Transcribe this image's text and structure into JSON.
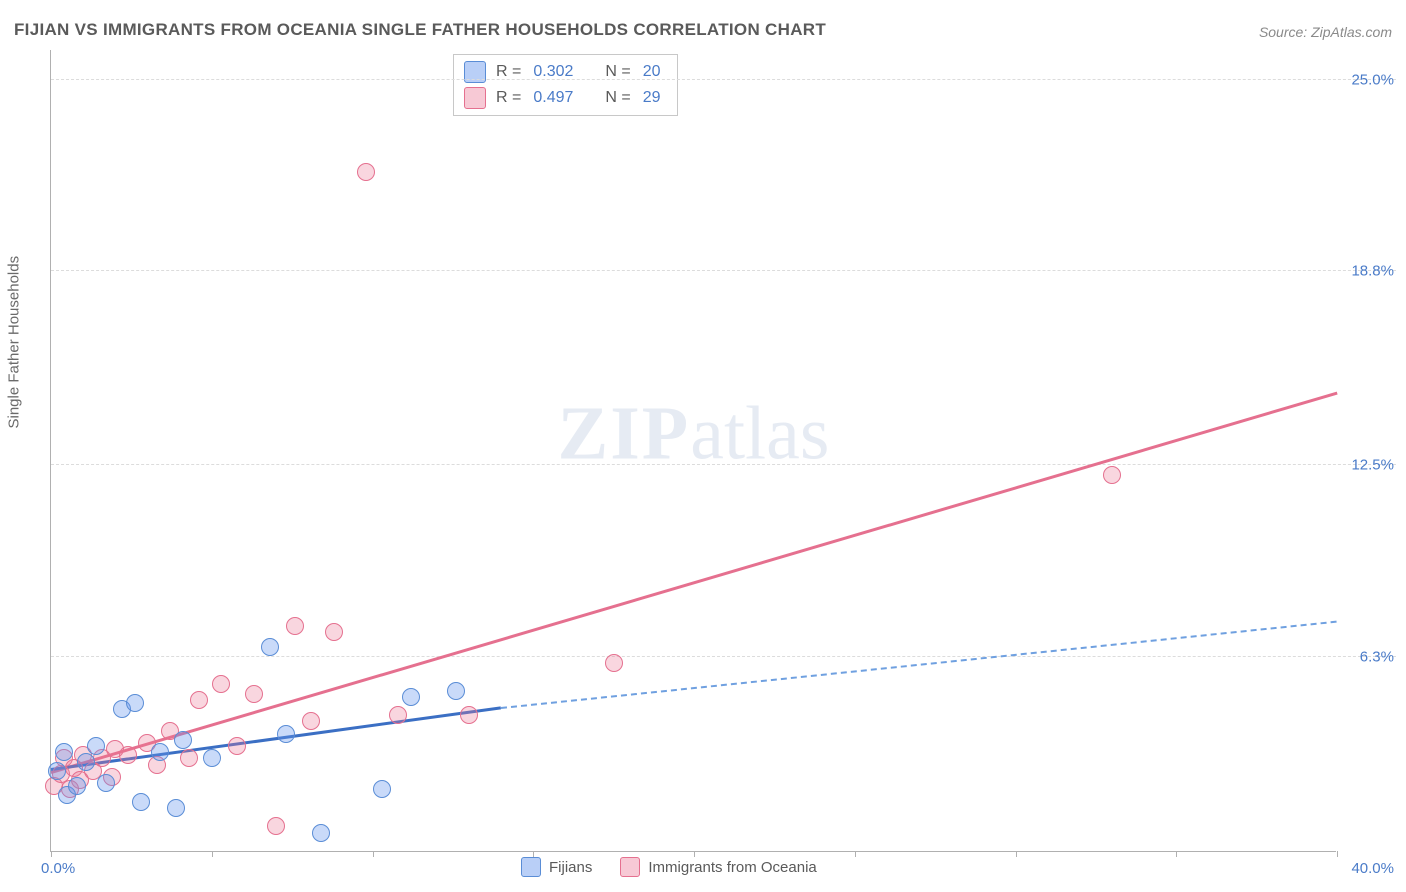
{
  "title": "FIJIAN VS IMMIGRANTS FROM OCEANIA SINGLE FATHER HOUSEHOLDS CORRELATION CHART",
  "source": "Source: ZipAtlas.com",
  "y_axis_label": "Single Father Households",
  "watermark_bold": "ZIP",
  "watermark_rest": "atlas",
  "chart": {
    "type": "scatter",
    "background_color": "#ffffff",
    "grid_color": "#dcdcdc",
    "axis_line_color": "#b0b0b0",
    "text_color": "#5a5a5a",
    "value_color": "#4a7bc8",
    "x_range": [
      0,
      40
    ],
    "y_range": [
      0,
      26
    ],
    "x_min_label": "0.0%",
    "x_max_label": "40.0%",
    "y_ticks": [
      {
        "value": 6.3,
        "label": "6.3%"
      },
      {
        "value": 12.5,
        "label": "12.5%"
      },
      {
        "value": 18.8,
        "label": "18.8%"
      },
      {
        "value": 25.0,
        "label": "25.0%"
      }
    ],
    "x_tick_positions": [
      0,
      5,
      10,
      15,
      20,
      25,
      30,
      35,
      40
    ],
    "series": {
      "blue": {
        "label": "Fijians",
        "fill": "rgba(100,149,237,0.35)",
        "stroke": "#5a8dd6",
        "marker_radius": 9,
        "points": [
          [
            0.2,
            2.6
          ],
          [
            0.4,
            3.2
          ],
          [
            0.5,
            1.8
          ],
          [
            0.8,
            2.1
          ],
          [
            1.1,
            2.9
          ],
          [
            1.4,
            3.4
          ],
          [
            1.7,
            2.2
          ],
          [
            2.2,
            4.6
          ],
          [
            2.6,
            4.8
          ],
          [
            2.8,
            1.6
          ],
          [
            3.4,
            3.2
          ],
          [
            3.9,
            1.4
          ],
          [
            4.1,
            3.6
          ],
          [
            5.0,
            3.0
          ],
          [
            6.8,
            6.6
          ],
          [
            7.3,
            3.8
          ],
          [
            8.4,
            0.6
          ],
          [
            10.3,
            2.0
          ],
          [
            11.2,
            5.0
          ],
          [
            12.6,
            5.2
          ]
        ],
        "trend": {
          "solid": {
            "x1": 0.0,
            "y1": 2.6,
            "x2": 14.0,
            "y2": 4.6,
            "color": "#3b6fc4",
            "width": 3
          },
          "dashed": {
            "x1": 14.0,
            "y1": 4.6,
            "x2": 40.0,
            "y2": 7.4,
            "color": "#6fa0e0",
            "width": 2
          }
        }
      },
      "pink": {
        "label": "Immigrants from Oceania",
        "fill": "rgba(235,120,150,0.30)",
        "stroke": "#e5708f",
        "marker_radius": 9,
        "points": [
          [
            0.1,
            2.1
          ],
          [
            0.3,
            2.5
          ],
          [
            0.4,
            3.0
          ],
          [
            0.6,
            2.0
          ],
          [
            0.7,
            2.7
          ],
          [
            0.9,
            2.3
          ],
          [
            1.0,
            3.1
          ],
          [
            1.3,
            2.6
          ],
          [
            1.6,
            3.0
          ],
          [
            1.9,
            2.4
          ],
          [
            2.0,
            3.3
          ],
          [
            2.4,
            3.1
          ],
          [
            3.0,
            3.5
          ],
          [
            3.3,
            2.8
          ],
          [
            3.7,
            3.9
          ],
          [
            4.3,
            3.0
          ],
          [
            4.6,
            4.9
          ],
          [
            5.3,
            5.4
          ],
          [
            5.8,
            3.4
          ],
          [
            6.3,
            5.1
          ],
          [
            7.0,
            0.8
          ],
          [
            7.6,
            7.3
          ],
          [
            8.1,
            4.2
          ],
          [
            8.8,
            7.1
          ],
          [
            9.8,
            22.0
          ],
          [
            10.8,
            4.4
          ],
          [
            13.0,
            4.4
          ],
          [
            17.5,
            6.1
          ],
          [
            33.0,
            12.2
          ]
        ],
        "trend": {
          "solid": {
            "x1": 0.0,
            "y1": 2.5,
            "x2": 40.0,
            "y2": 14.8,
            "color": "#e5708f",
            "width": 3
          }
        }
      }
    },
    "top_legend": {
      "rows": [
        {
          "swatch": "blue",
          "r_label": "R =",
          "r_value": "0.302",
          "n_label": "N =",
          "n_value": "20"
        },
        {
          "swatch": "pink",
          "r_label": "R =",
          "r_value": "0.497",
          "n_label": "N =",
          "n_value": "29"
        }
      ]
    }
  }
}
